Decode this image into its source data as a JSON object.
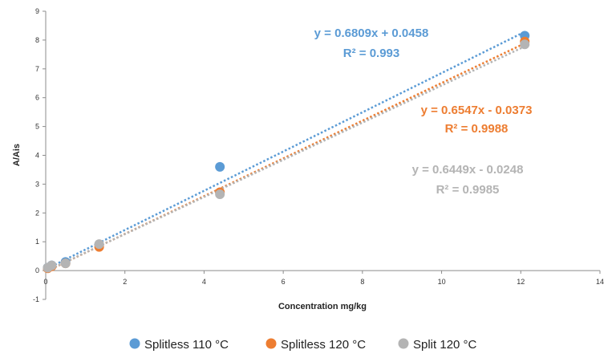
{
  "chart_data": {
    "type": "scatter",
    "title": "",
    "xlabel": "Concentration mg/kg",
    "ylabel": "A/Ais",
    "xlim": [
      0,
      14
    ],
    "ylim": [
      -1,
      9
    ],
    "x_ticks": [
      "0",
      "2",
      "4",
      "6",
      "8",
      "10",
      "12",
      "14"
    ],
    "y_ticks": [
      "-1",
      "0",
      "1",
      "2",
      "3",
      "4",
      "5",
      "6",
      "7",
      "8",
      "9"
    ],
    "trendline": "linear, dotted",
    "series": [
      {
        "name": "Splitless 110 °C",
        "color": "#5b9bd5",
        "points": [
          [
            0.05,
            0.1
          ],
          [
            0.15,
            0.18
          ],
          [
            0.5,
            0.3
          ],
          [
            1.35,
            0.9
          ],
          [
            4.4,
            3.6
          ],
          [
            12.1,
            8.15
          ]
        ],
        "trend": {
          "slope": 0.6809,
          "intercept": 0.0458
        },
        "equation": "y = 0.6809x + 0.0458",
        "r2": "R² = 0.993"
      },
      {
        "name": "Splitless 120 °C",
        "color": "#ed7d31",
        "points": [
          [
            0.05,
            0.08
          ],
          [
            0.15,
            0.15
          ],
          [
            0.5,
            0.25
          ],
          [
            1.35,
            0.82
          ],
          [
            4.4,
            2.72
          ],
          [
            12.1,
            7.95
          ]
        ],
        "trend": {
          "slope": 0.6547,
          "intercept": -0.0373
        },
        "equation": "y = 0.6547x - 0.0373",
        "r2": "R² = 0.9988"
      },
      {
        "name": "Split 120 °C",
        "color": "#b4b4b4",
        "points": [
          [
            0.05,
            0.1
          ],
          [
            0.15,
            0.18
          ],
          [
            0.5,
            0.25
          ],
          [
            1.35,
            0.92
          ],
          [
            4.4,
            2.65
          ],
          [
            12.1,
            7.85
          ]
        ],
        "trend": {
          "slope": 0.6449,
          "intercept": -0.0248
        },
        "equation": "y = 0.6449x - 0.0248",
        "r2": "R² = 0.9985"
      }
    ]
  }
}
